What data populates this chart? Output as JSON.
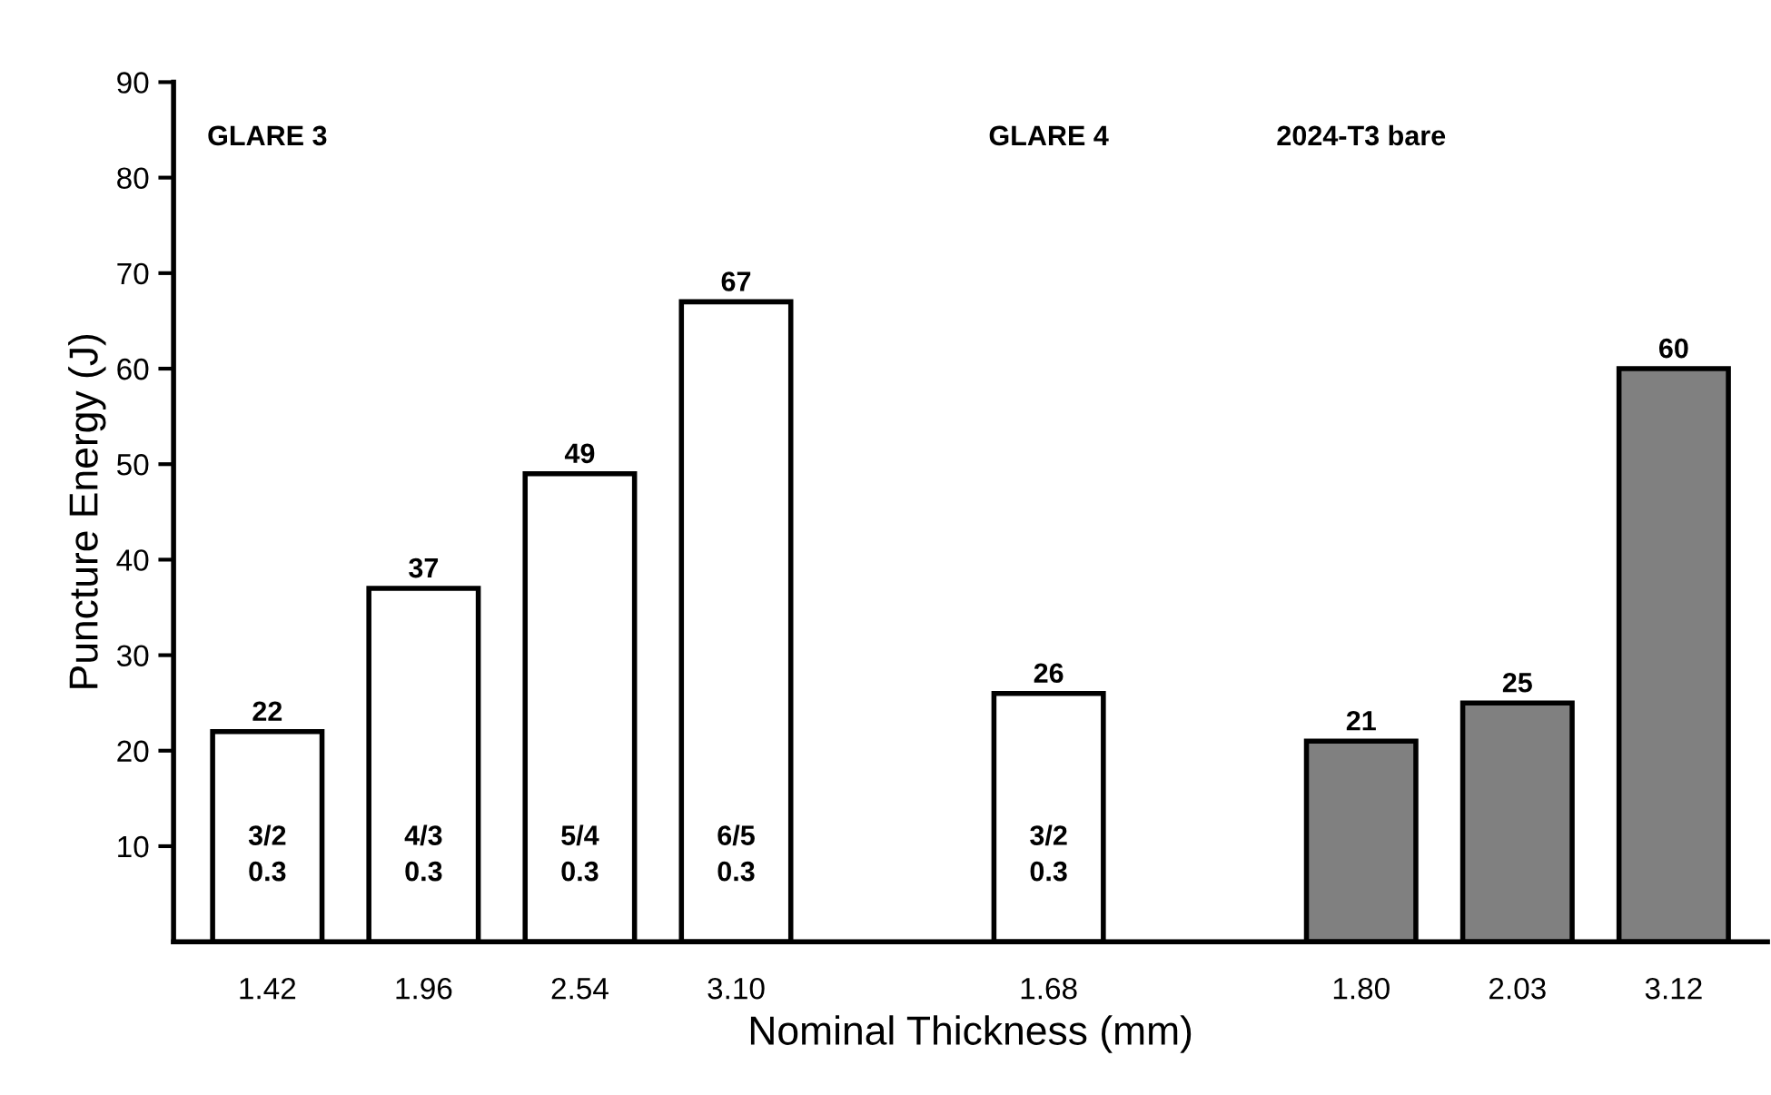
{
  "chart_data": {
    "type": "bar",
    "xlabel": "Nominal Thickness (mm)",
    "ylabel": "Puncture Energy (J)",
    "categories": [
      "1.42",
      "1.96",
      "2.54",
      "3.10",
      null,
      "1.68",
      null,
      "1.80",
      "2.03",
      "3.12"
    ],
    "values": [
      22,
      37,
      49,
      67,
      null,
      26,
      null,
      21,
      25,
      60
    ],
    "colors": [
      "#ffffff",
      "#ffffff",
      "#ffffff",
      "#ffffff",
      null,
      "#ffffff",
      null,
      "#808080",
      "#808080",
      "#808080"
    ],
    "ylim": [
      0,
      90
    ],
    "yticks": [
      10,
      20,
      30,
      40,
      50,
      60,
      70,
      80,
      90
    ],
    "data_labels": true,
    "grid": false,
    "legend": false,
    "annotations": [
      "GLARE 3",
      "GLARE 4",
      "2024-T3 bare",
      "3/2\n0.3",
      "4/3\n0.3",
      "5/4\n0.3",
      "6/5\n0.3",
      "3/2\n0.3"
    ]
  }
}
